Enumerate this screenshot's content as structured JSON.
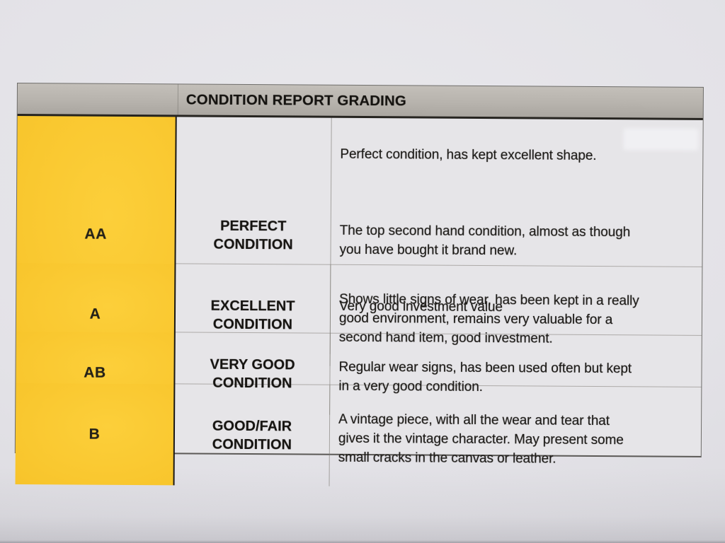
{
  "document": {
    "title": "CONDITION REPORT GRADING"
  },
  "table": {
    "rows": [
      {
        "grade": "AA",
        "label": "PERFECT\nCONDITION",
        "paragraphs": [
          "Perfect condition, has kept excellent shape.",
          "The top second hand condition, almost as though\nyou have bought it brand new.",
          "Very good investment value"
        ]
      },
      {
        "grade": "A",
        "label": "EXCELLENT\nCONDITION",
        "paragraphs": [
          "Shows little signs of wear, has been kept in a really\ngood environment, remains very valuable for a\nsecond hand item, good investment."
        ]
      },
      {
        "grade": "AB",
        "label": "VERY GOOD\nCONDITION",
        "paragraphs": [
          "Regular wear signs, has been used often but kept\nin a very good condition."
        ]
      },
      {
        "grade": "B",
        "label": "GOOD/FAIR\nCONDITION",
        "paragraphs": [
          "A vintage piece, with all the wear and tear that\ngives it the vintage character. May present some\nsmall cracks in the canvas or leather."
        ]
      }
    ]
  },
  "colors": {
    "paper": "#e3e2e7",
    "cell-bg": "#e6e5e8",
    "header-gray": "#b7b3ad",
    "grade-yellow": "#f8c52c",
    "ink": "#1a1815"
  }
}
